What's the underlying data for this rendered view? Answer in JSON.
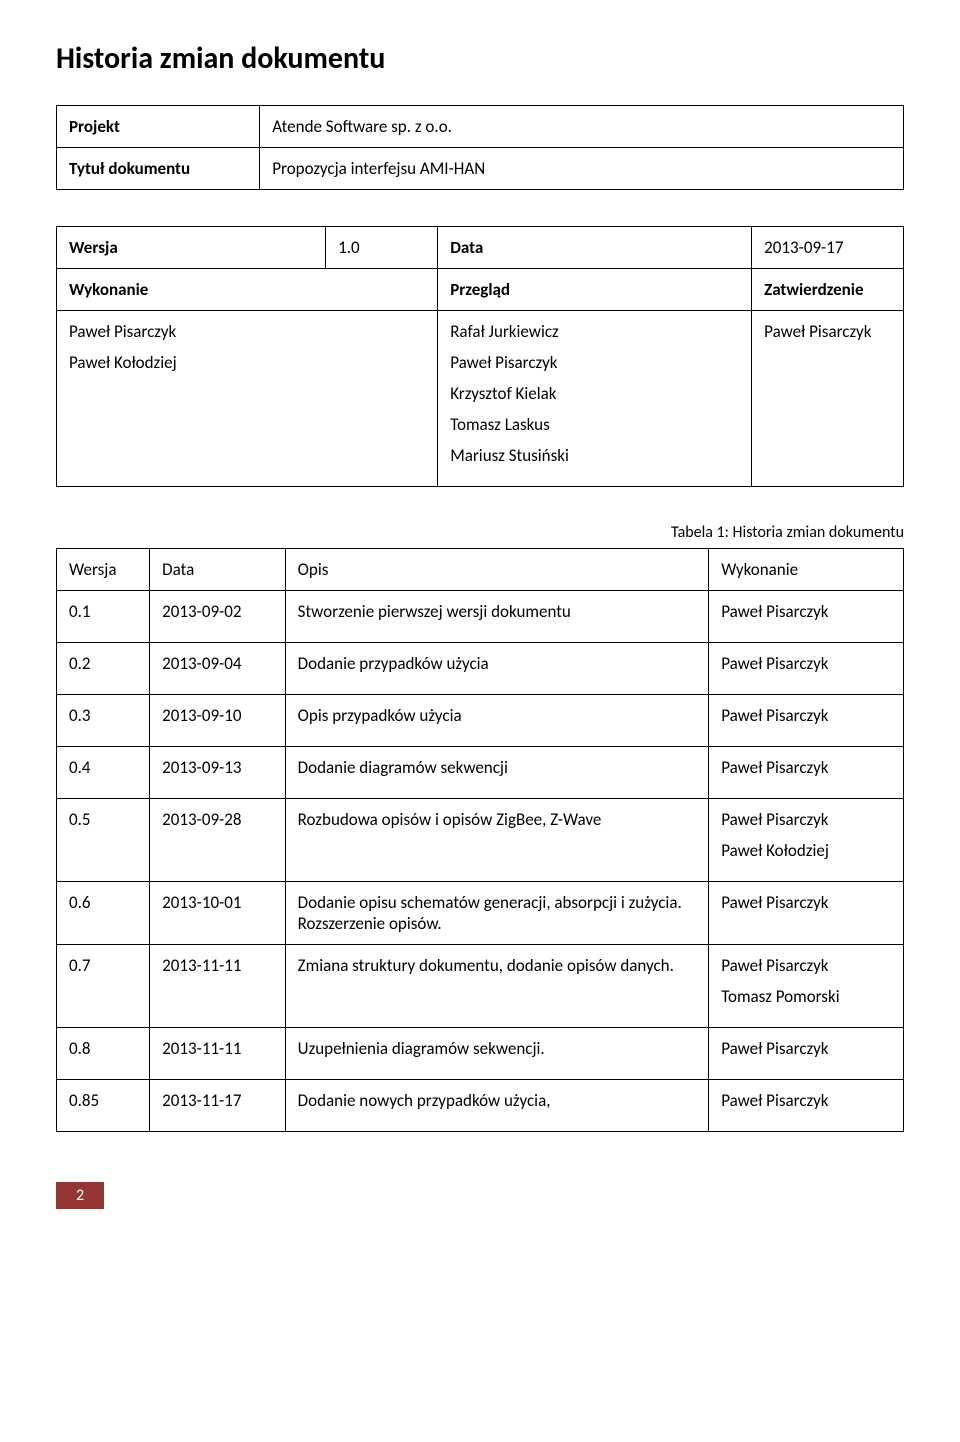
{
  "title": "Historia zmian dokumentu",
  "meta": {
    "projekt_label": "Projekt",
    "projekt_value": "Atende Software sp. z o.o.",
    "tytul_label": "Tytuł dokumentu",
    "tytul_value": "Propozycja interfejsu AMI-HAN"
  },
  "version_row": {
    "wersja_label": "Wersja",
    "wersja_value": "1.0",
    "data_label": "Data",
    "data_value": "2013-09-17"
  },
  "approval": {
    "wykonanie_label": "Wykonanie",
    "przeglad_label": "Przegląd",
    "zatwierdzenie_label": "Zatwierdzenie",
    "wykonanie_1": "Paweł Pisarczyk",
    "wykonanie_2": "Paweł Kołodziej",
    "przeglad_1": "Rafał Jurkiewicz",
    "przeglad_2": "Paweł Pisarczyk",
    "przeglad_3": "Krzysztof Kielak",
    "przeglad_4": "Tomasz Laskus",
    "przeglad_5": "Mariusz Stusiński",
    "zatwierdzenie_1": "Paweł Pisarczyk"
  },
  "caption": "Tabela 1: Historia zmian dokumentu",
  "history": {
    "col_wersja": "Wersja",
    "col_data": "Data",
    "col_opis": "Opis",
    "col_wykonanie": "Wykonanie",
    "rows": [
      {
        "v": "0.1",
        "d": "2013-09-02",
        "o": "Stworzenie pierwszej wersji dokumentu",
        "w": "Paweł Pisarczyk"
      },
      {
        "v": "0.2",
        "d": "2013-09-04",
        "o": "Dodanie przypadków użycia",
        "w": "Paweł Pisarczyk"
      },
      {
        "v": "0.3",
        "d": "2013-09-10",
        "o": "Opis przypadków użycia",
        "w": "Paweł Pisarczyk"
      },
      {
        "v": "0.4",
        "d": "2013-09-13",
        "o": "Dodanie diagramów sekwencji",
        "w": "Paweł Pisarczyk"
      },
      {
        "v": "0.5",
        "d": "2013-09-28",
        "o": "Rozbudowa opisów i opisów ZigBee, Z-Wave",
        "w": "Paweł Pisarczyk",
        "w2": "Paweł Kołodziej"
      },
      {
        "v": "0.6",
        "d": "2013-10-01",
        "o": "Dodanie opisu schematów generacji, absorpcji i zużycia. Rozszerzenie opisów.",
        "w": "Paweł Pisarczyk"
      },
      {
        "v": "0.7",
        "d": "2013-11-11",
        "o": "Zmiana struktury dokumentu, dodanie opisów danych.",
        "w": "Paweł Pisarczyk",
        "w2": "Tomasz Pomorski"
      },
      {
        "v": "0.8",
        "d": "2013-11-11",
        "o": "Uzupełnienia diagramów sekwencji.",
        "w": "Paweł Pisarczyk"
      },
      {
        "v": "0.85",
        "d": "2013-11-17",
        "o": "Dodanie nowych przypadków użycia,",
        "w": "Paweł Pisarczyk"
      }
    ]
  },
  "page_number": "2",
  "colors": {
    "page_bg": "#ffffff",
    "text": "#000000",
    "badge_bg": "#943634",
    "badge_text": "#ffffff",
    "border": "#000000"
  }
}
